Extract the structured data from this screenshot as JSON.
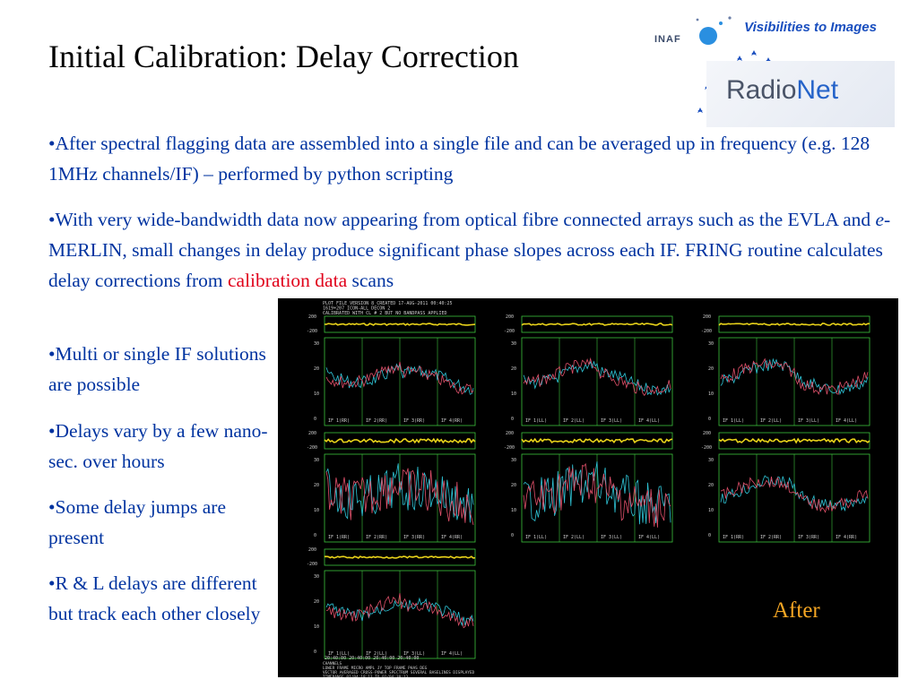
{
  "slide": {
    "title": "Initial Calibration: Delay Correction",
    "bullets": {
      "b1": "•After spectral flagging  data are assembled into a single file and can be averaged up in frequency (e.g. 128 1MHz channels/IF) – performed by python scripting",
      "b2_a": "•With very wide-bandwidth data now appearing from optical fibre connected arrays such as the EVLA and ",
      "b2_italic": "e",
      "b2_b": "-MERLIN, small changes in delay produce significant phase slopes across each IF. FRING routine calculates delay corrections from ",
      "b2_red": "calibration data",
      "b2_c": " scans",
      "b3": "•Multi or single IF solutions are possible",
      "b4": "•Delays vary by a few nano-sec. over hours",
      "b5": "•Some delay jumps are present",
      "b6": "•R & L delays are different but track each other closely"
    },
    "figure_caption": "After"
  },
  "logo": {
    "tagline": "Visibilities to Images",
    "inaf": "INAF",
    "radionet_a": "Radio",
    "radionet_b": "Net"
  },
  "plot_panel": {
    "header_lines": [
      "PLOT FILE VERSION 8  CREATED 17-AUG-2011 00:40:25",
      "1619+207   ICON-ALL DECON 2",
      "CALIBRATED WITH CL # 2 BUT NO BANDPASS APPLIED"
    ],
    "footer_lines": [
      "CHANNELS",
      "LOWER FRAME  MICRO AMPL JY   TOP FRAME  PHAS DEG",
      "VECTOR AVERAGED CROSS-POWER SPECTRUM   SEVERAL BASELINES DISPLAYED",
      "TIMERANGE  01/04:18:13 TO 01/04:30:13"
    ],
    "time_ticks": "20:40:00  20:40:00  20:40:00  20:40:00",
    "if_labels_rr": [
      "IF 1(RR)",
      "IF 2(RR)",
      "IF 3(RR)",
      "IF 4(RR)"
    ],
    "if_labels_ll": [
      "IF 1(LL)",
      "IF 2(LL)",
      "IF 3(LL)",
      "IF 4(LL)"
    ],
    "y_top_tick": "200",
    "y_top_neg": "-200",
    "y_low_ticks": [
      "30",
      "20",
      "10",
      "0"
    ],
    "colors": {
      "phase": "#e8d21a",
      "amp_a": "#2fc6d8",
      "amp_b": "#e0506a",
      "frame": "#3ec23e",
      "text": "#cfcfcf"
    }
  }
}
